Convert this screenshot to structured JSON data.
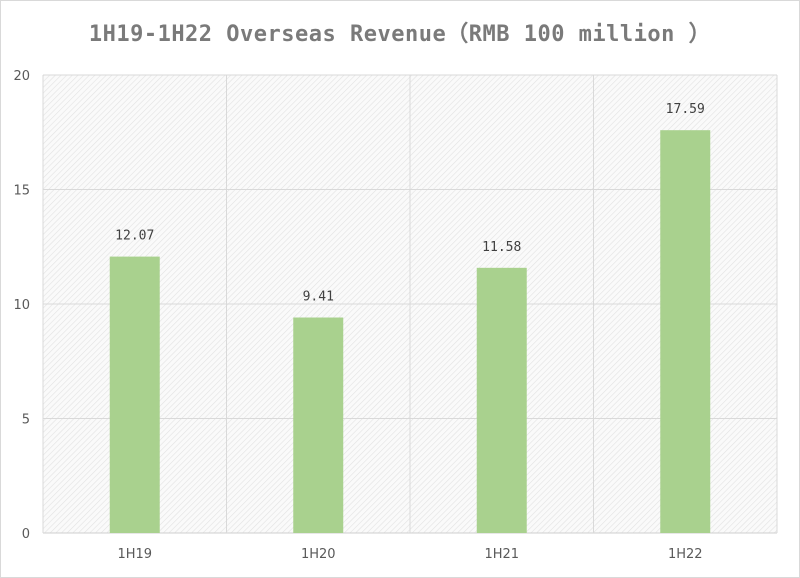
{
  "chart_data": {
    "type": "bar",
    "title": "1H19-1H22 Overseas Revenue（RMB 100 million ）",
    "categories": [
      "1H19",
      "1H20",
      "1H21",
      "1H22"
    ],
    "values": [
      12.07,
      9.41,
      11.58,
      17.59
    ],
    "data_labels": [
      "12.07",
      "9.41",
      "11.58",
      "17.59"
    ],
    "xlabel": "",
    "ylabel": "",
    "ylim": [
      0,
      20
    ],
    "yticks": [
      0,
      5,
      10,
      15,
      20
    ],
    "grid": true,
    "legend": "none",
    "bar_color": "#a9d18e"
  }
}
